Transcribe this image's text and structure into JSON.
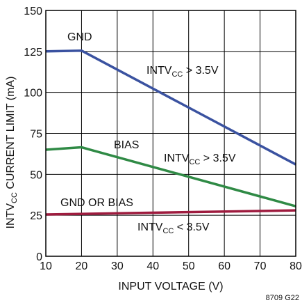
{
  "chart_data": {
    "type": "line",
    "xlabel": "INPUT VOLTAGE (V)",
    "ylabel": {
      "pre": "INTV",
      "sub": "CC",
      "post": " CURRENT LIMIT (mA)"
    },
    "xlim": [
      10,
      80
    ],
    "ylim": [
      0,
      150
    ],
    "xticks": [
      10,
      20,
      30,
      40,
      50,
      60,
      70,
      80
    ],
    "yticks": [
      0,
      25,
      50,
      75,
      100,
      125,
      150
    ],
    "grid": true,
    "series": [
      {
        "color": "#3a52a0",
        "x": [
          10,
          20,
          80
        ],
        "y": [
          125,
          125.5,
          56
        ]
      },
      {
        "color": "#2f8a45",
        "x": [
          10,
          20,
          80
        ],
        "y": [
          65,
          66.5,
          30.5
        ]
      },
      {
        "color": "#9e1b3e",
        "x": [
          10,
          80
        ],
        "y": [
          25.5,
          28
        ]
      }
    ],
    "annotations": [
      {
        "id": "gnd",
        "text": "GND"
      },
      {
        "id": "intv-high-1",
        "pre": "INTV",
        "sub": "CC",
        "post": " > 3.5V"
      },
      {
        "id": "bias",
        "text": "BIAS"
      },
      {
        "id": "intv-high-2",
        "pre": "INTV",
        "sub": "CC",
        "post": " > 3.5V"
      },
      {
        "id": "gnd-or-bias",
        "text": "GND OR BIAS"
      },
      {
        "id": "intv-low",
        "pre": "INTV",
        "sub": "CC",
        "post": " < 3.5V"
      }
    ],
    "figure_code": "8709 G22"
  }
}
